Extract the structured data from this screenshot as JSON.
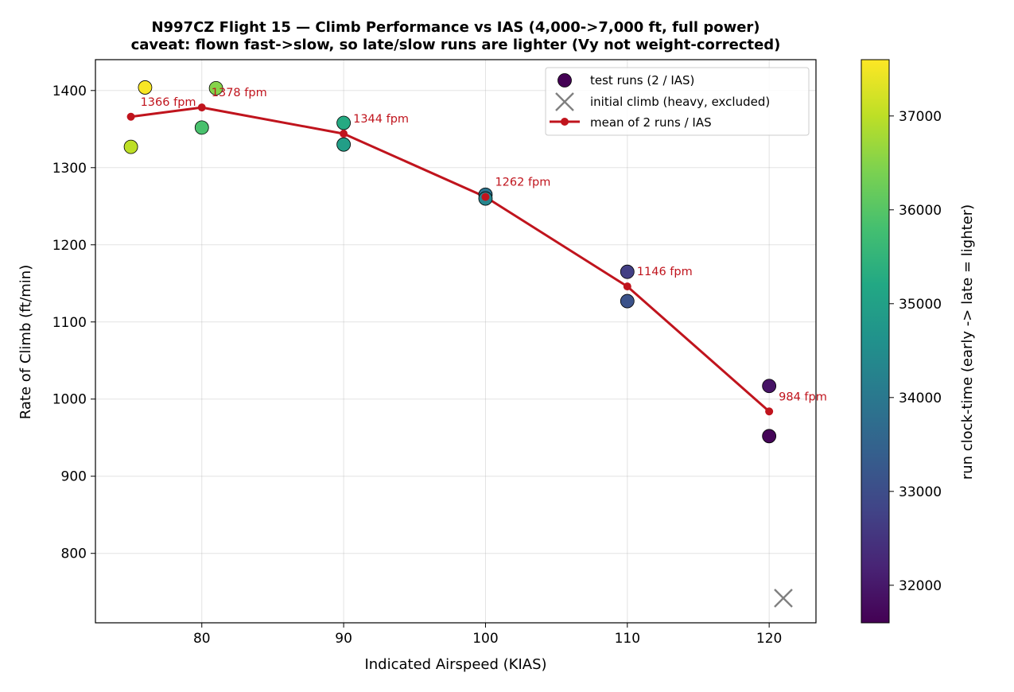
{
  "chart_data": {
    "type": "scatter",
    "title": "N997CZ Flight 15 — Climb Performance vs IAS  (4,000->7,000 ft, full power)",
    "subtitle": "caveat: flown fast->slow, so late/slow runs are lighter (Vy not weight-corrected)",
    "xlabel": "Indicated Airspeed (KIAS)",
    "ylabel": "Rate of Climb (ft/min)",
    "xlim": [
      72.5,
      123.3
    ],
    "ylim": [
      710,
      1440
    ],
    "x_ticks": [
      80,
      90,
      100,
      110,
      120
    ],
    "y_ticks": [
      800,
      900,
      1000,
      1100,
      1200,
      1300,
      1400
    ],
    "grid": true,
    "legend_position": "top-right",
    "legend": [
      {
        "key": "runs",
        "label": "test runs (2 / IAS)"
      },
      {
        "key": "initial",
        "label": "initial climb (heavy, excluded)"
      },
      {
        "key": "mean",
        "label": "mean of 2 runs / IAS"
      }
    ],
    "colorbar": {
      "label": "run clock-time (early -> late = lighter)",
      "colormap": "viridis",
      "range": [
        31600,
        37600
      ],
      "ticks": [
        32000,
        33000,
        34000,
        35000,
        36000,
        37000
      ]
    },
    "series": [
      {
        "name": "test runs (2 / IAS)",
        "type": "scatter",
        "points": [
          {
            "x": 120,
            "y": 1017,
            "t": 31900
          },
          {
            "x": 120,
            "y": 952,
            "t": 31650
          },
          {
            "x": 110,
            "y": 1165,
            "t": 32700
          },
          {
            "x": 110,
            "y": 1127,
            "t": 33100
          },
          {
            "x": 100,
            "y": 1265,
            "t": 33900
          },
          {
            "x": 100,
            "y": 1260,
            "t": 34300
          },
          {
            "x": 90,
            "y": 1358,
            "t": 35250
          },
          {
            "x": 90,
            "y": 1330,
            "t": 34950
          },
          {
            "x": 80,
            "y": 1352,
            "t": 35850
          },
          {
            "x": 81,
            "y": 1403,
            "t": 36500
          },
          {
            "x": 75,
            "y": 1327,
            "t": 37000
          },
          {
            "x": 76,
            "y": 1404,
            "t": 37550
          }
        ]
      },
      {
        "name": "initial climb (heavy, excluded)",
        "type": "scatter",
        "points": [
          {
            "x": 121,
            "y": 742
          }
        ]
      },
      {
        "name": "mean of 2 runs / IAS",
        "type": "line",
        "points": [
          {
            "x": 75,
            "y": 1366,
            "label": "1366 fpm"
          },
          {
            "x": 80,
            "y": 1378,
            "label": "1378 fpm"
          },
          {
            "x": 90,
            "y": 1344,
            "label": "1344 fpm"
          },
          {
            "x": 100,
            "y": 1262,
            "label": "1262 fpm"
          },
          {
            "x": 110,
            "y": 1146,
            "label": "1146 fpm"
          },
          {
            "x": 120,
            "y": 984,
            "label": "984 fpm"
          }
        ]
      }
    ],
    "colors": {
      "mean_line": "#c0141d",
      "initial_marker": "#808080"
    }
  }
}
